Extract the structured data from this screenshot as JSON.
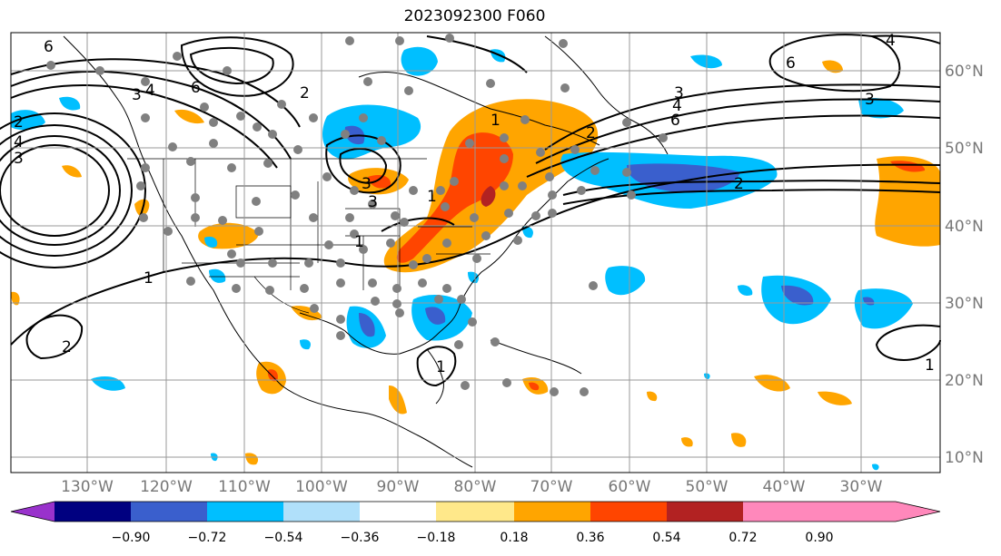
{
  "title": "2023092300 F060",
  "lon_labels": [
    "130°W",
    "120°W",
    "110°W",
    "100°W",
    "90°W",
    "80°W",
    "70°W",
    "60°W",
    "50°W",
    "40°W",
    "30°W"
  ],
  "lat_labels": [
    "60°N",
    "50°N",
    "40°N",
    "30°N",
    "20°N",
    "10°N"
  ],
  "colorbar": {
    "ticks": [
      "−0.90",
      "−0.72",
      "−0.54",
      "−0.36",
      "−0.18",
      "0.18",
      "0.36",
      "0.54",
      "0.72",
      "0.90"
    ],
    "colors": [
      "#9932cc",
      "#000080",
      "#3a5fcd",
      "#00bfff",
      "#b0e0fa",
      "#ffffff",
      "#ffe88a",
      "#ffa500",
      "#ff4500",
      "#b22222",
      "#ff88bb"
    ]
  },
  "contour_labels": [
    "6",
    "4",
    "3",
    "2",
    "6",
    "3",
    "4",
    "6",
    "1",
    "2",
    "3",
    "4",
    "3",
    "3",
    "2",
    "1",
    "2",
    "1",
    "1",
    "1",
    "6",
    "4",
    "3",
    "2",
    "1"
  ]
}
